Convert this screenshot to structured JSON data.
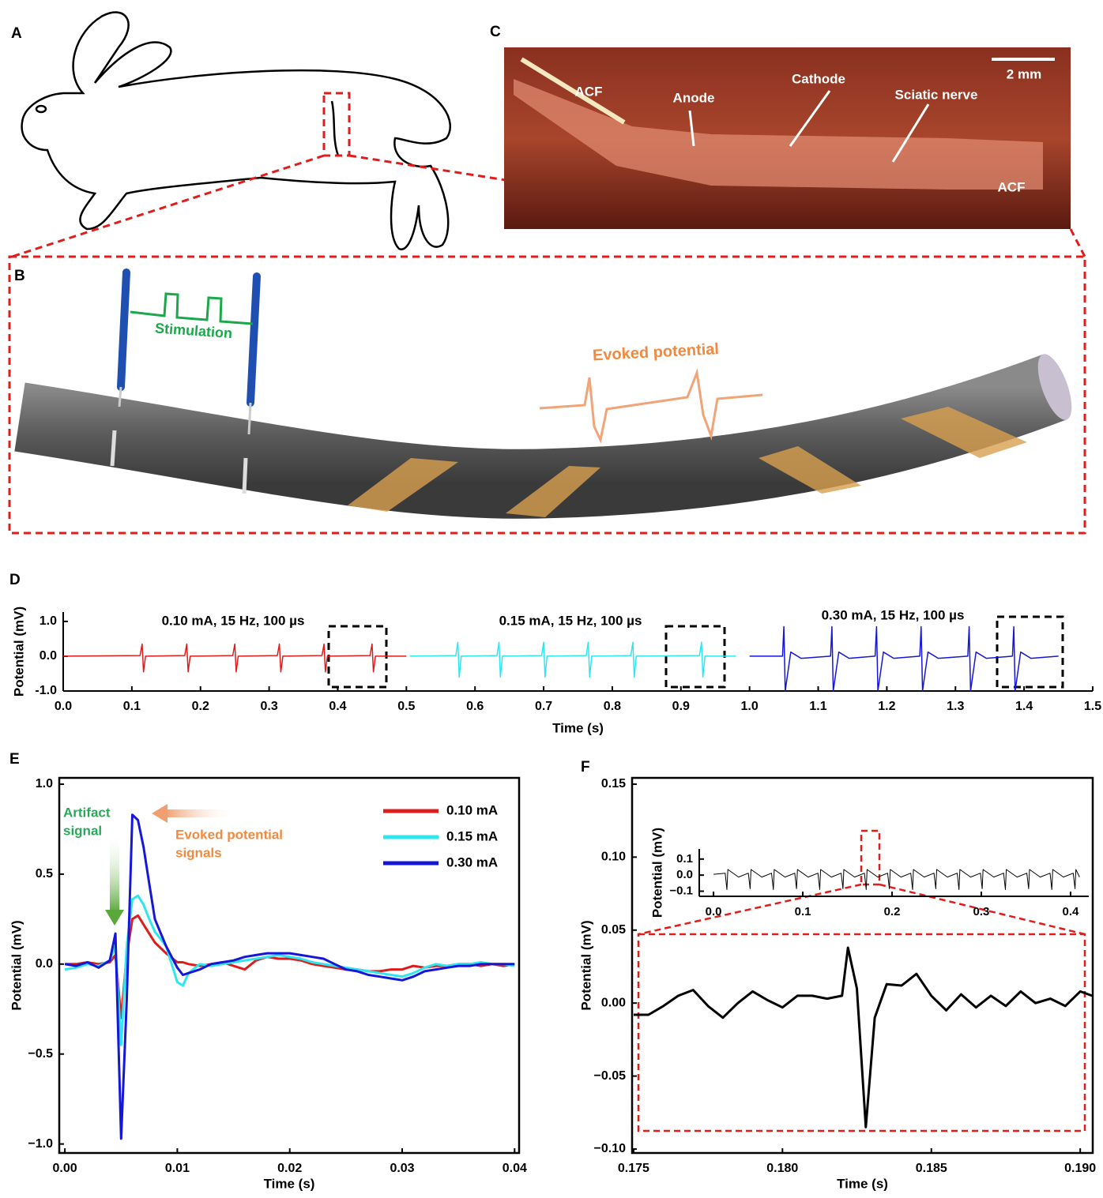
{
  "panel_labels": [
    "A",
    "B",
    "C",
    "D",
    "E",
    "F"
  ],
  "photo": {
    "labels": [
      "ACF",
      "Anode",
      "Cathode",
      "Sciatic nerve",
      "ACF"
    ],
    "scale_bar": "2 mm"
  },
  "diagram": {
    "stimulation": "Stimulation",
    "evoked_potential": "Evoked potential"
  },
  "chart_data": [
    {
      "type": "line",
      "xlabel": "Time (s)",
      "ylabel": "Potential (mV)",
      "xlim": [
        0,
        1.5
      ],
      "ylim": [
        -1.0,
        1.27
      ],
      "xticks": [
        {
          "value": 0,
          "label": "0.0"
        },
        0.1,
        0.2,
        0.3,
        0.4,
        0.5,
        0.6,
        0.7,
        0.8,
        0.9,
        {
          "value": 1,
          "label": "1.0"
        },
        1.1,
        1.2,
        1.3,
        1.4,
        1.5
      ],
      "yticks": [
        {
          "value": -1,
          "label": "-1.0"
        },
        {
          "value": 0,
          "label": "0.0"
        },
        {
          "value": 1,
          "label": "1.0"
        }
      ],
      "annotations": [
        "0.10 mA, 15 Hz, 100 µs",
        "0.15 mA, 15 Hz, 100 µs",
        "0.30 mA, 15 Hz, 100 µs"
      ],
      "series": [
        {
          "color": "#dd1c1c",
          "x": [
            0,
            0.112,
            0.115,
            0.117,
            0.12,
            0.177,
            0.18,
            0.182,
            0.185,
            0.247,
            0.25,
            0.252,
            0.255,
            0.312,
            0.315,
            0.317,
            0.32,
            0.377,
            0.38,
            0.382,
            0.385,
            0.447,
            0.45,
            0.452,
            0.455,
            0.5
          ],
          "values": [
            0,
            0.02,
            0.35,
            -0.45,
            0,
            0.02,
            0.35,
            -0.45,
            0,
            0.02,
            0.35,
            -0.45,
            0,
            0.02,
            0.35,
            -0.45,
            0,
            0.02,
            0.35,
            -0.45,
            0,
            0.02,
            0.35,
            -0.45,
            0,
            0
          ]
        },
        {
          "color": "#2ee6ef",
          "x": [
            0.505,
            0.572,
            0.575,
            0.577,
            0.58,
            0.632,
            0.635,
            0.637,
            0.64,
            0.697,
            0.7,
            0.702,
            0.705,
            0.762,
            0.765,
            0.767,
            0.77,
            0.827,
            0.83,
            0.832,
            0.835,
            0.927,
            0.93,
            0.932,
            0.935,
            0.98
          ],
          "values": [
            0,
            0.02,
            0.4,
            -0.6,
            0,
            0.02,
            0.4,
            -0.6,
            0,
            0.02,
            0.4,
            -0.6,
            0,
            0.02,
            0.4,
            -0.6,
            0,
            0.02,
            0.4,
            -0.6,
            0,
            0.02,
            0.4,
            -0.6,
            0,
            0
          ]
        },
        {
          "color": "#1616d8",
          "x": [
            1.0,
            1.048,
            1.05,
            1.052,
            1.06,
            1.075,
            1.118,
            1.12,
            1.122,
            1.13,
            1.145,
            1.183,
            1.185,
            1.187,
            1.195,
            1.21,
            1.248,
            1.25,
            1.252,
            1.26,
            1.275,
            1.318,
            1.32,
            1.322,
            1.33,
            1.345,
            1.383,
            1.385,
            1.387,
            1.395,
            1.41,
            1.45
          ],
          "values": [
            0,
            0,
            0.85,
            -1.0,
            0.12,
            -0.06,
            0,
            0.85,
            -1.0,
            0.12,
            -0.06,
            0,
            0.85,
            -1.0,
            0.12,
            -0.06,
            0,
            0.85,
            -1.0,
            0.12,
            -0.06,
            0,
            0.85,
            -1.0,
            0.12,
            -0.06,
            0,
            0.85,
            -1.0,
            0.12,
            -0.06,
            0
          ]
        }
      ]
    },
    {
      "type": "line",
      "xlabel": "Time (s)",
      "ylabel": "Potential (mV)",
      "xlim": [
        -0.0005,
        0.0404
      ],
      "ylim": [
        -1.05,
        1.035
      ],
      "xticks": [
        {
          "value": 0,
          "label": "0.00"
        },
        {
          "value": 0.01,
          "label": "0.01"
        },
        {
          "value": 0.02,
          "label": "0.02"
        },
        {
          "value": 0.03,
          "label": "0.03"
        },
        {
          "value": 0.04,
          "label": "0.04"
        }
      ],
      "yticks": [
        {
          "value": -1,
          "label": "−1.0"
        },
        {
          "value": -0.5,
          "label": "−0.5"
        },
        {
          "value": 0,
          "label": "0.0"
        },
        0.5,
        {
          "value": 1,
          "label": "1.0"
        }
      ],
      "legend": "upper right",
      "annotations": [
        "Artifact",
        "signal",
        "Evoked potential",
        "signals"
      ],
      "x": [
        0,
        0.001,
        0.002,
        0.003,
        0.004,
        0.0045,
        0.005,
        0.0055,
        0.006,
        0.0065,
        0.007,
        0.0075,
        0.008,
        0.009,
        0.01,
        0.0105,
        0.011,
        0.012,
        0.013,
        0.014,
        0.015,
        0.016,
        0.017,
        0.018,
        0.019,
        0.02,
        0.021,
        0.022,
        0.023,
        0.024,
        0.025,
        0.026,
        0.027,
        0.028,
        0.029,
        0.03,
        0.031,
        0.032,
        0.033,
        0.034,
        0.035,
        0.036,
        0.037,
        0.038,
        0.039,
        0.04
      ],
      "series": [
        {
          "name": "0.10 mA",
          "color": "#dd1c1c",
          "values": [
            0,
            0,
            0.01,
            0,
            0.01,
            0.05,
            -0.3,
            0.05,
            0.25,
            0.27,
            0.22,
            0.17,
            0.12,
            0.06,
            0.01,
            0.01,
            0,
            -0.01,
            0,
            0.01,
            -0.01,
            -0.03,
            0.02,
            0.04,
            0.03,
            0.03,
            0.02,
            0,
            -0.01,
            -0.02,
            -0.03,
            -0.03,
            -0.04,
            -0.04,
            -0.03,
            -0.03,
            -0.01,
            -0.02,
            -0.01,
            -0.01,
            0,
            0,
            -0.01,
            0,
            -0.01,
            0
          ]
        },
        {
          "name": "0.15 mA",
          "color": "#2ee6ef",
          "values": [
            -0.03,
            -0.02,
            0,
            -0.01,
            0.02,
            0.1,
            -0.45,
            0.1,
            0.36,
            0.38,
            0.33,
            0.25,
            0.18,
            0.1,
            -0.1,
            -0.12,
            -0.05,
            0,
            -0.01,
            0,
            0.01,
            0.02,
            0.03,
            0.04,
            0.05,
            0.04,
            0.03,
            0.01,
            0,
            -0.01,
            -0.02,
            -0.03,
            -0.04,
            -0.05,
            -0.06,
            -0.07,
            -0.05,
            -0.02,
            0,
            -0.01,
            0,
            0,
            0.01,
            0,
            0,
            -0.01
          ]
        },
        {
          "name": "0.30 mA",
          "color": "#1616d8",
          "values": [
            0,
            -0.01,
            0.01,
            -0.02,
            0.02,
            0.17,
            -0.97,
            -0.2,
            0.83,
            0.8,
            0.65,
            0.45,
            0.25,
            0.1,
            -0.02,
            -0.06,
            -0.05,
            -0.03,
            0,
            0.01,
            0.02,
            0.04,
            0.05,
            0.06,
            0.06,
            0.06,
            0.05,
            0.04,
            0.03,
            0,
            -0.03,
            -0.04,
            -0.06,
            -0.07,
            -0.08,
            -0.09,
            -0.07,
            -0.04,
            -0.03,
            -0.02,
            -0.01,
            -0.01,
            0,
            0,
            0,
            0
          ]
        }
      ]
    },
    {
      "type": "line",
      "xlabel": "Time (s)",
      "ylabel": "Potential (mV)",
      "xlim": [
        0.17495,
        0.19042
      ],
      "ylim": [
        -0.1027,
        0.1543
      ],
      "xticks": [
        0.175,
        {
          "value": 0.18,
          "label": "0.180"
        },
        0.185,
        {
          "value": 0.19,
          "label": "0.190"
        }
      ],
      "yticks": [
        {
          "value": -0.1,
          "label": "−0.10"
        },
        {
          "value": -0.05,
          "label": "−0.05"
        },
        {
          "value": 0,
          "label": "0.00"
        },
        0.05,
        {
          "value": 0.1,
          "label": "0.10"
        },
        0.15
      ],
      "series": [
        {
          "color": "#000000",
          "x": [
            0.175,
            0.1755,
            0.176,
            0.1765,
            0.177,
            0.1775,
            0.178,
            0.1785,
            0.179,
            0.1795,
            0.18,
            0.1805,
            0.181,
            0.1815,
            0.182,
            0.1822,
            0.1825,
            0.1828,
            0.1831,
            0.1835,
            0.184,
            0.1845,
            0.185,
            0.1855,
            0.186,
            0.1865,
            0.187,
            0.1875,
            0.188,
            0.1885,
            0.189,
            0.1895,
            0.19,
            0.1904
          ],
          "values": [
            -0.008,
            -0.008,
            -0.002,
            0.005,
            0.009,
            -0.002,
            -0.01,
            0,
            0.008,
            0.002,
            -0.003,
            0.005,
            0.005,
            0.003,
            0.005,
            0.038,
            0.01,
            -0.085,
            -0.01,
            0.013,
            0.012,
            0.02,
            0.005,
            -0.005,
            0.006,
            -0.003,
            0.005,
            -0.002,
            0.008,
            0,
            0.003,
            -0.002,
            0.008,
            0.005
          ]
        }
      ]
    },
    {
      "type": "line",
      "ylabel": "Potential (mV)",
      "xlim": [
        -0.016,
        0.4204
      ],
      "ylim": [
        -0.132,
        0.163
      ],
      "xticks": [
        {
          "value": 0,
          "label": "0.0"
        },
        0.1,
        0.2,
        0.3,
        0.4
      ],
      "yticks": [
        {
          "value": -0.1,
          "label": "−0.1"
        },
        {
          "value": 0,
          "label": "0.0"
        },
        0.1
      ],
      "series": [
        {
          "color": "#000000",
          "x": [
            0,
            0.013,
            0.015,
            0.016,
            0.028,
            0.039,
            0.041,
            0.042,
            0.054,
            0.065,
            0.067,
            0.068,
            0.08,
            0.091,
            0.093,
            0.094,
            0.106,
            0.117,
            0.119,
            0.12,
            0.132,
            0.143,
            0.145,
            0.146,
            0.158,
            0.169,
            0.171,
            0.172,
            0.184,
            0.195,
            0.197,
            0.198,
            0.21,
            0.221,
            0.223,
            0.224,
            0.236,
            0.247,
            0.249,
            0.25,
            0.262,
            0.273,
            0.275,
            0.276,
            0.288,
            0.299,
            0.301,
            0.302,
            0.314,
            0.325,
            0.327,
            0.328,
            0.34,
            0.351,
            0.353,
            0.354,
            0.366,
            0.377,
            0.379,
            0.38,
            0.392,
            0.403,
            0.405,
            0.406,
            0.41
          ],
          "values": [
            0.005,
            0.012,
            -0.09,
            0.035,
            -0.012,
            0.012,
            -0.085,
            0.035,
            -0.012,
            0.012,
            -0.09,
            0.035,
            -0.012,
            0.012,
            -0.085,
            0.035,
            -0.012,
            0.012,
            -0.09,
            0.035,
            -0.012,
            0.012,
            -0.085,
            0.035,
            -0.012,
            0.012,
            -0.09,
            0.035,
            -0.012,
            0.012,
            -0.085,
            0.035,
            -0.012,
            0.012,
            -0.09,
            0.035,
            -0.012,
            0.012,
            -0.085,
            0.035,
            -0.012,
            0.012,
            -0.09,
            0.035,
            -0.012,
            0.012,
            -0.085,
            0.035,
            -0.012,
            0.012,
            -0.09,
            0.035,
            -0.012,
            0.012,
            -0.085,
            0.035,
            -0.012,
            0.012,
            -0.09,
            0.035,
            -0.012,
            0.012,
            -0.085,
            0.035,
            -0.012
          ]
        }
      ]
    }
  ]
}
